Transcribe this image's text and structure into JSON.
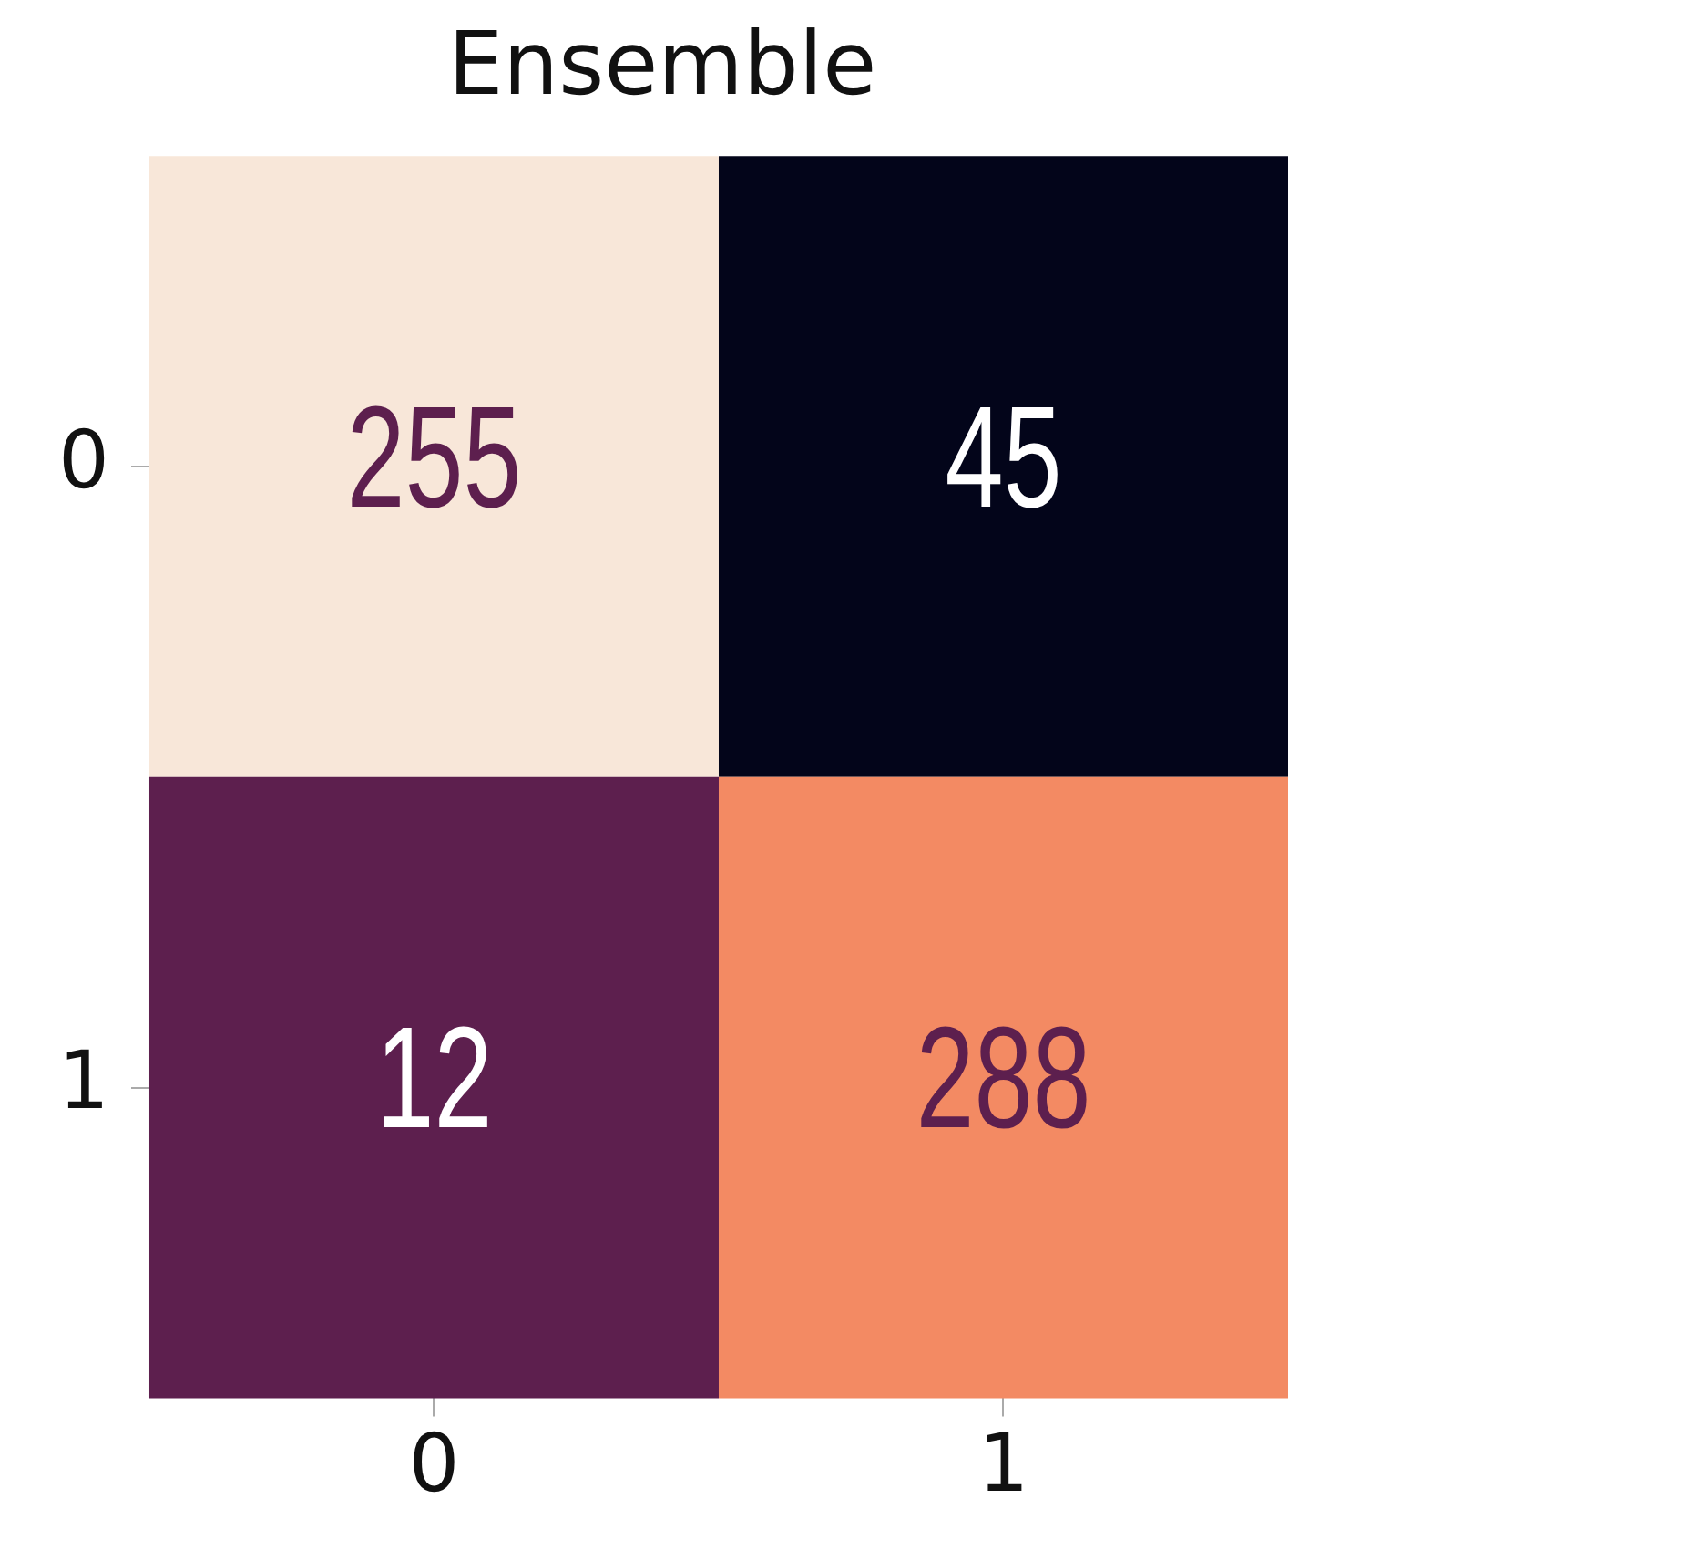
{
  "chart_data": {
    "type": "heatmap",
    "title": "Ensemble",
    "categories": [
      "0",
      "1"
    ],
    "y_categories": [
      "0",
      "1"
    ],
    "cells": [
      [
        255,
        45
      ],
      [
        12,
        288
      ]
    ],
    "colors": [
      [
        "#f8e7d9",
        "#03051a"
      ],
      [
        "#5d1f4e",
        "#f38a63"
      ]
    ],
    "data_labels": true
  }
}
